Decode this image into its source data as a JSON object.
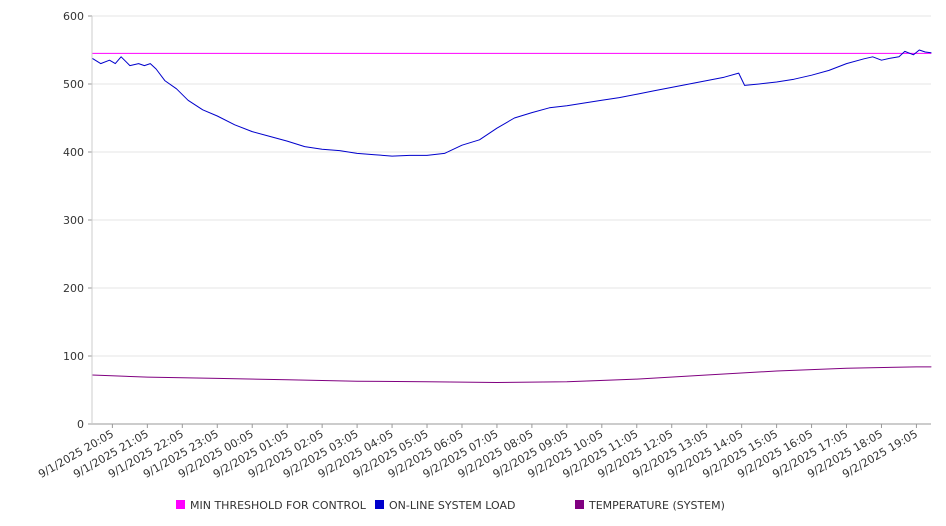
{
  "chart_data": {
    "type": "line",
    "ylim": [
      0,
      600
    ],
    "y_ticks": [
      "0",
      "100",
      "200",
      "300",
      "400",
      "500",
      "600"
    ],
    "grid": true,
    "legend_position": "bottom",
    "x_tick_labels": [
      "9/1/2025 20:05",
      "9/1/2025 21:05",
      "9/1/2025 22:05",
      "9/1/2025 23:05",
      "9/2/2025 00:05",
      "9/2/2025 01:05",
      "9/2/2025 02:05",
      "9/2/2025 03:05",
      "9/2/2025 04:05",
      "9/2/2025 05:05",
      "9/2/2025 06:05",
      "9/2/2025 07:05",
      "9/2/2025 08:05",
      "9/2/2025 09:05",
      "9/2/2025 10:05",
      "9/2/2025 11:05",
      "9/2/2025 12:05",
      "9/2/2025 13:05",
      "9/2/2025 14:05",
      "9/2/2025 15:05",
      "9/2/2025 16:05",
      "9/2/2025 17:05",
      "9/2/2025 18:05",
      "9/2/2025 19:05"
    ],
    "x_range": [
      "9/1/2025 19:30",
      "9/2/2025 19:30"
    ],
    "series": [
      {
        "name": "MIN THRESHOLD FOR CONTROL",
        "color": "#ff00ff",
        "points": [
          [
            "9/1/2025 19:30",
            545
          ],
          [
            "9/2/2025 19:30",
            545
          ]
        ]
      },
      {
        "name": "ON-LINE SYSTEM LOAD",
        "color": "#0000cc",
        "points": [
          [
            "9/1/2025 19:30",
            538
          ],
          [
            "9/1/2025 19:45",
            530
          ],
          [
            "9/1/2025 20:00",
            535
          ],
          [
            "9/1/2025 20:10",
            530
          ],
          [
            "9/1/2025 20:20",
            540
          ],
          [
            "9/1/2025 20:35",
            527
          ],
          [
            "9/1/2025 20:50",
            530
          ],
          [
            "9/1/2025 21:00",
            527
          ],
          [
            "9/1/2025 21:10",
            530
          ],
          [
            "9/1/2025 21:20",
            522
          ],
          [
            "9/1/2025 21:35",
            505
          ],
          [
            "9/1/2025 21:55",
            493
          ],
          [
            "9/1/2025 22:15",
            476
          ],
          [
            "9/1/2025 22:40",
            462
          ],
          [
            "9/1/2025 23:05",
            453
          ],
          [
            "9/1/2025 23:35",
            440
          ],
          [
            "9/2/2025 00:05",
            430
          ],
          [
            "9/2/2025 00:35",
            423
          ],
          [
            "9/2/2025 01:05",
            416
          ],
          [
            "9/2/2025 01:35",
            408
          ],
          [
            "9/2/2025 02:05",
            404
          ],
          [
            "9/2/2025 02:35",
            402
          ],
          [
            "9/2/2025 03:05",
            398
          ],
          [
            "9/2/2025 03:35",
            396
          ],
          [
            "9/2/2025 04:05",
            394
          ],
          [
            "9/2/2025 04:35",
            395
          ],
          [
            "9/2/2025 05:05",
            395
          ],
          [
            "9/2/2025 05:35",
            398
          ],
          [
            "9/2/2025 06:05",
            410
          ],
          [
            "9/2/2025 06:35",
            418
          ],
          [
            "9/2/2025 07:05",
            435
          ],
          [
            "9/2/2025 07:35",
            450
          ],
          [
            "9/2/2025 08:05",
            458
          ],
          [
            "9/2/2025 08:35",
            465
          ],
          [
            "9/2/2025 09:05",
            468
          ],
          [
            "9/2/2025 09:35",
            472
          ],
          [
            "9/2/2025 10:05",
            476
          ],
          [
            "9/2/2025 10:35",
            480
          ],
          [
            "9/2/2025 11:05",
            485
          ],
          [
            "9/2/2025 11:35",
            490
          ],
          [
            "9/2/2025 12:05",
            495
          ],
          [
            "9/2/2025 12:35",
            500
          ],
          [
            "9/2/2025 13:05",
            505
          ],
          [
            "9/2/2025 13:35",
            510
          ],
          [
            "9/2/2025 14:00",
            516
          ],
          [
            "9/2/2025 14:10",
            498
          ],
          [
            "9/2/2025 14:35",
            500
          ],
          [
            "9/2/2025 15:05",
            503
          ],
          [
            "9/2/2025 15:35",
            507
          ],
          [
            "9/2/2025 16:05",
            513
          ],
          [
            "9/2/2025 16:35",
            520
          ],
          [
            "9/2/2025 17:05",
            530
          ],
          [
            "9/2/2025 17:35",
            537
          ],
          [
            "9/2/2025 17:50",
            540
          ],
          [
            "9/2/2025 18:05",
            535
          ],
          [
            "9/2/2025 18:20",
            538
          ],
          [
            "9/2/2025 18:35",
            540
          ],
          [
            "9/2/2025 18:45",
            548
          ],
          [
            "9/2/2025 19:00",
            543
          ],
          [
            "9/2/2025 19:10",
            550
          ],
          [
            "9/2/2025 19:20",
            547
          ],
          [
            "9/2/2025 19:30",
            546
          ]
        ]
      },
      {
        "name": "TEMPERATURE (SYSTEM)",
        "color": "#800080",
        "points": [
          [
            "9/1/2025 19:30",
            72
          ],
          [
            "9/1/2025 21:05",
            69
          ],
          [
            "9/1/2025 23:05",
            67
          ],
          [
            "9/2/2025 01:05",
            65
          ],
          [
            "9/2/2025 03:05",
            63
          ],
          [
            "9/2/2025 05:05",
            62
          ],
          [
            "9/2/2025 07:05",
            61
          ],
          [
            "9/2/2025 09:05",
            62
          ],
          [
            "9/2/2025 11:05",
            66
          ],
          [
            "9/2/2025 13:05",
            72
          ],
          [
            "9/2/2025 15:05",
            78
          ],
          [
            "9/2/2025 17:05",
            82
          ],
          [
            "9/2/2025 19:05",
            84
          ],
          [
            "9/2/2025 19:30",
            84
          ]
        ]
      }
    ]
  }
}
